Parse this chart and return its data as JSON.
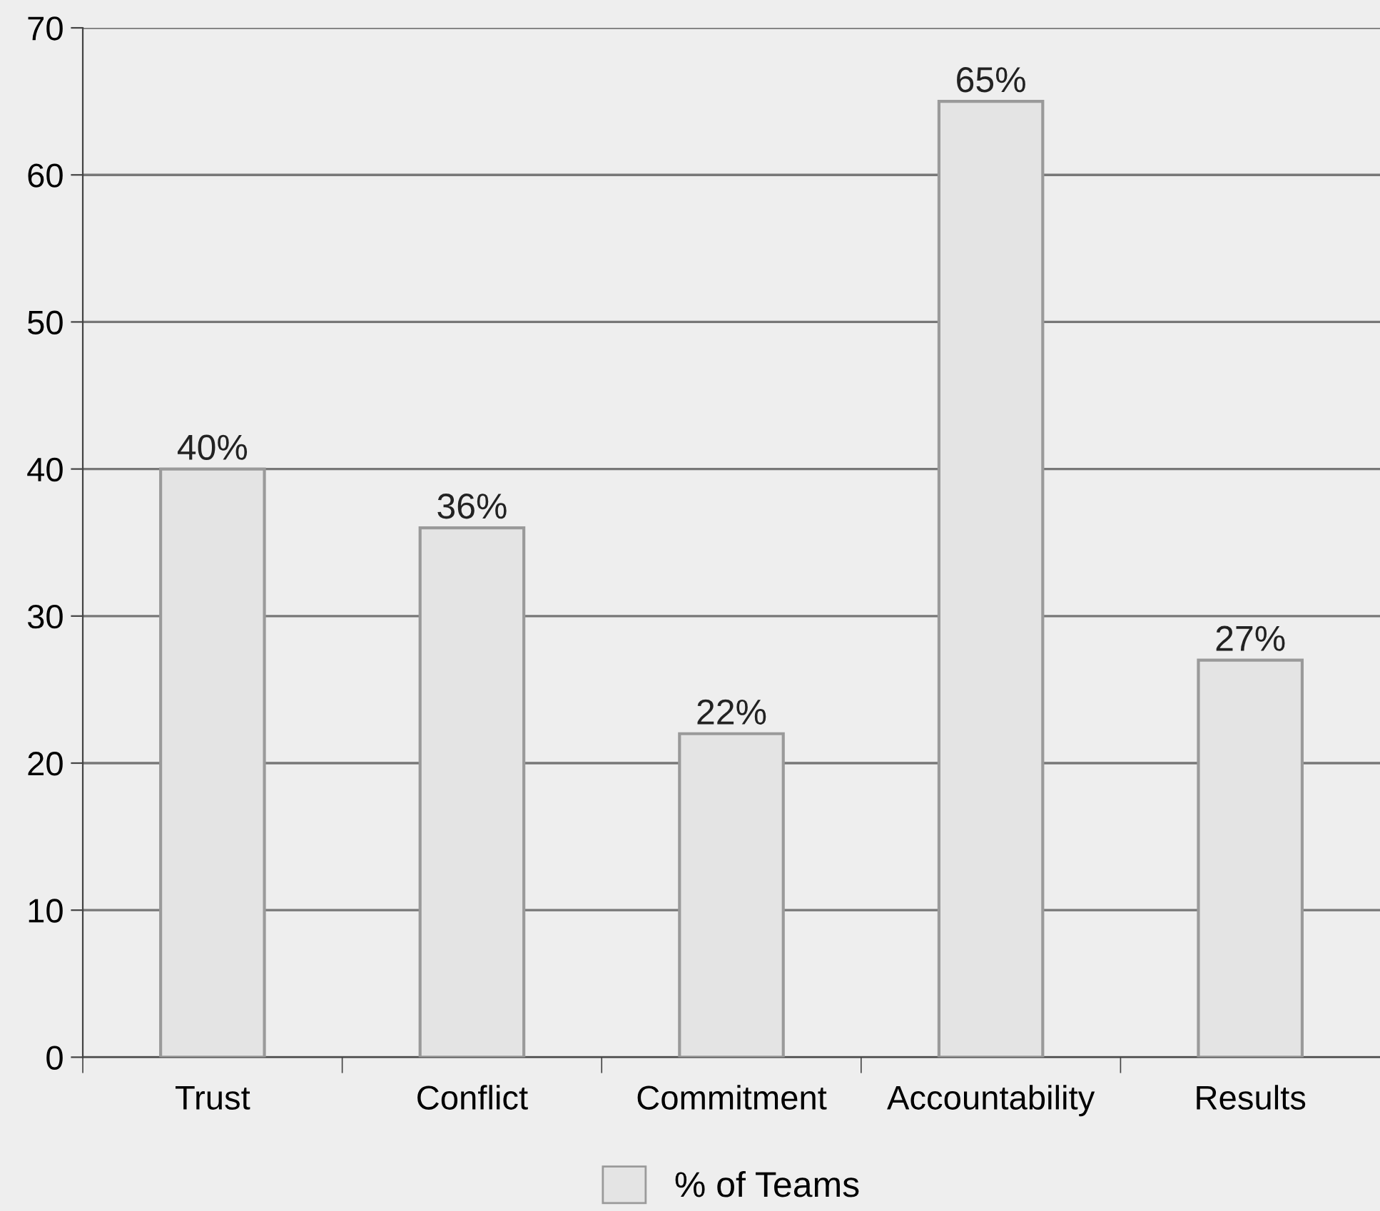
{
  "chart_data": {
    "type": "bar",
    "categories": [
      "Trust",
      "Conflict",
      "Commitment",
      "Accountability",
      "Results"
    ],
    "series": [
      {
        "name": "% of Teams",
        "color": "#e4e4e4",
        "values": [
          40,
          36,
          22,
          65,
          27
        ],
        "value_labels": [
          "40%",
          "36%",
          "22%",
          "65%",
          "27%"
        ]
      }
    ],
    "ylim": [
      0,
      70
    ],
    "yticks": [
      0,
      10,
      20,
      30,
      40,
      50,
      60,
      70
    ],
    "grid": "y",
    "legend": "bottom"
  }
}
